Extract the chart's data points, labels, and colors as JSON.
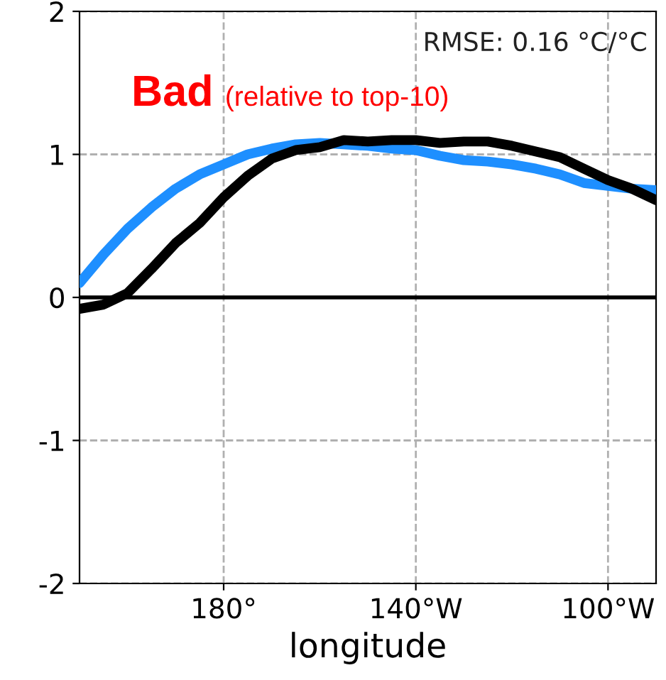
{
  "chart_data": {
    "type": "line",
    "xlabel": "longitude",
    "annotations": [
      "RMSE: 0.16 °C/°C",
      "Bad",
      "(relative to top-10)"
    ],
    "series": [
      {
        "color": "#1e8fff",
        "x": [
          150,
          155,
          160,
          165,
          170,
          175,
          180,
          185,
          190,
          195,
          200,
          205,
          210,
          215,
          220,
          225,
          230,
          235,
          240,
          245,
          250,
          255,
          260,
          265,
          270
        ],
        "values": [
          0.1,
          0.3,
          0.48,
          0.63,
          0.76,
          0.86,
          0.93,
          1.0,
          1.04,
          1.07,
          1.08,
          1.07,
          1.06,
          1.04,
          1.03,
          0.99,
          0.96,
          0.95,
          0.93,
          0.9,
          0.86,
          0.8,
          0.78,
          0.76,
          0.75
        ]
      },
      {
        "color": "#000000",
        "x": [
          150,
          155,
          160,
          165,
          170,
          175,
          180,
          185,
          190,
          195,
          200,
          205,
          210,
          215,
          220,
          225,
          230,
          235,
          240,
          245,
          250,
          255,
          260,
          265,
          270
        ],
        "values": [
          -0.08,
          -0.05,
          0.03,
          0.2,
          0.38,
          0.52,
          0.7,
          0.85,
          0.97,
          1.03,
          1.05,
          1.1,
          1.09,
          1.1,
          1.1,
          1.08,
          1.09,
          1.09,
          1.06,
          1.02,
          0.98,
          0.9,
          0.82,
          0.76,
          0.68
        ]
      }
    ],
    "ref_lines": [
      {
        "axis": "y",
        "value": 0,
        "color": "#000000"
      }
    ],
    "xlim": [
      150,
      270
    ],
    "ylim": [
      -2,
      2
    ],
    "xticks": [
      {
        "value": 180,
        "label": "180°"
      },
      {
        "value": 220,
        "label": "140°W"
      },
      {
        "value": 260,
        "label": "100°W"
      }
    ],
    "yticks": [
      -2,
      -1,
      0,
      1,
      2
    ],
    "grid": true,
    "line_style": "solid"
  }
}
